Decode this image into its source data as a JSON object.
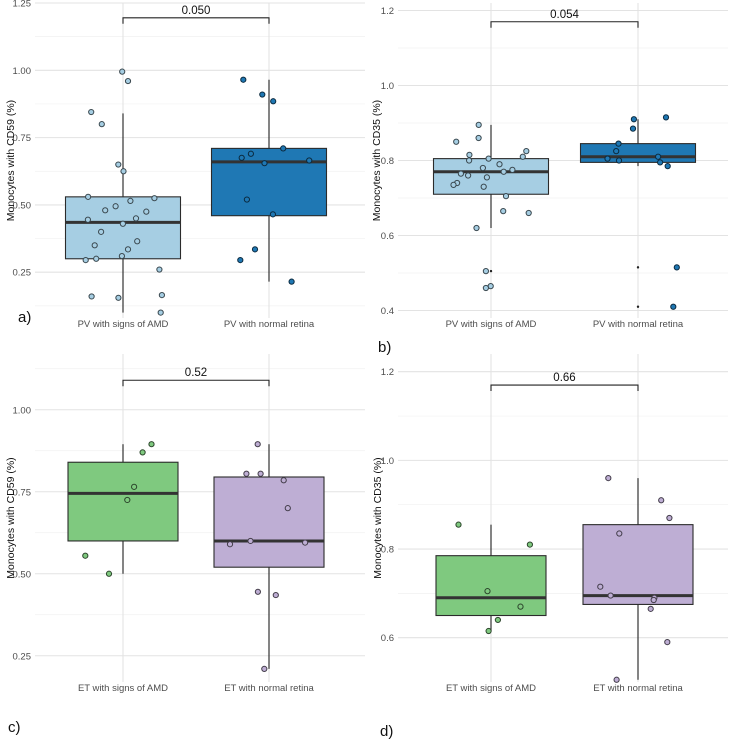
{
  "chart_data": [
    {
      "panel": "a)",
      "type": "boxplot",
      "ylabel": "Monocytes with CD59 (%)",
      "ylim": [
        0.08,
        1.25
      ],
      "yticks": [
        0.25,
        0.5,
        0.75,
        1.0,
        1.25
      ],
      "ytick_labels": [
        "0.25",
        "0.50",
        "0.75",
        "1.00",
        "1.25"
      ],
      "categories": [
        "PV with signs of AMD",
        "PV with normal retina"
      ],
      "comparison": {
        "label": "0.050",
        "y": 1.195
      },
      "groups": [
        {
          "name": "PV with signs of AMD",
          "color": "#a6cee3",
          "q1": 0.3,
          "median": 0.435,
          "q3": 0.53,
          "whisker_low": 0.1,
          "whisker_high": 0.84,
          "points": [
            0.995,
            0.96,
            0.845,
            0.8,
            0.65,
            0.625,
            0.53,
            0.525,
            0.515,
            0.495,
            0.48,
            0.475,
            0.45,
            0.445,
            0.43,
            0.4,
            0.365,
            0.35,
            0.335,
            0.31,
            0.3,
            0.295,
            0.26,
            0.165,
            0.16,
            0.155,
            0.1
          ],
          "outliers": [
            0.99
          ]
        },
        {
          "name": "PV with normal retina",
          "color": "#1f78b4",
          "q1": 0.46,
          "median": 0.66,
          "q3": 0.71,
          "whisker_low": 0.215,
          "whisker_high": 0.965,
          "points": [
            0.965,
            0.91,
            0.885,
            0.71,
            0.69,
            0.675,
            0.665,
            0.655,
            0.52,
            0.465,
            0.335,
            0.295,
            0.215
          ],
          "outliers": []
        }
      ]
    },
    {
      "panel": "b)",
      "type": "boxplot",
      "ylabel": "Monocytes with CD35 (%)",
      "ylim": [
        0.38,
        1.22
      ],
      "yticks": [
        0.4,
        0.6,
        0.8,
        1.0,
        1.2
      ],
      "ytick_labels": [
        "0.4",
        "0.6",
        "0.8",
        "1.0",
        "1.2"
      ],
      "categories": [
        "PV with signs of AMD",
        "PV with normal retina"
      ],
      "comparison": {
        "label": "0.054",
        "y": 1.17
      },
      "groups": [
        {
          "name": "PV with signs of AMD",
          "color": "#a6cee3",
          "q1": 0.71,
          "median": 0.77,
          "q3": 0.805,
          "whisker_low": 0.62,
          "whisker_high": 0.895,
          "points": [
            0.895,
            0.86,
            0.85,
            0.825,
            0.815,
            0.81,
            0.805,
            0.8,
            0.79,
            0.78,
            0.775,
            0.77,
            0.765,
            0.76,
            0.755,
            0.74,
            0.735,
            0.73,
            0.705,
            0.665,
            0.66,
            0.62,
            0.505,
            0.465,
            0.46
          ],
          "outliers": [
            0.505
          ]
        },
        {
          "name": "PV with normal retina",
          "color": "#1f78b4",
          "q1": 0.795,
          "median": 0.81,
          "q3": 0.845,
          "whisker_low": 0.785,
          "whisker_high": 0.91,
          "points": [
            0.915,
            0.91,
            0.885,
            0.845,
            0.825,
            0.81,
            0.805,
            0.8,
            0.795,
            0.785,
            0.515,
            0.41
          ],
          "outliers": [
            0.515,
            0.41
          ]
        }
      ]
    },
    {
      "panel": "c)",
      "type": "boxplot",
      "ylabel": "Monocytes with CD59 (%)",
      "ylim": [
        0.17,
        1.17
      ],
      "yticks": [
        0.25,
        0.5,
        0.75,
        1.0
      ],
      "ytick_labels": [
        "0.25",
        "0.50",
        "0.75",
        "1.00"
      ],
      "categories": [
        "ET with signs of AMD",
        "ET with normal retina"
      ],
      "comparison": {
        "label": "0.52",
        "y": 1.09
      },
      "groups": [
        {
          "name": "ET with signs of AMD",
          "color": "#7fc97f",
          "q1": 0.6,
          "median": 0.745,
          "q3": 0.84,
          "whisker_low": 0.5,
          "whisker_high": 0.895,
          "points": [
            0.895,
            0.87,
            0.765,
            0.725,
            0.555,
            0.5
          ],
          "outliers": []
        },
        {
          "name": "ET with normal retina",
          "color": "#beaed4",
          "q1": 0.52,
          "median": 0.6,
          "q3": 0.795,
          "whisker_low": 0.21,
          "whisker_high": 0.895,
          "points": [
            0.895,
            0.805,
            0.805,
            0.785,
            0.7,
            0.6,
            0.595,
            0.59,
            0.445,
            0.435,
            0.21
          ],
          "outliers": []
        }
      ]
    },
    {
      "panel": "d)",
      "type": "boxplot",
      "ylabel": "Monocytes with CD35 (%)",
      "ylim": [
        0.5,
        1.24
      ],
      "yticks": [
        0.6,
        0.8,
        1.0,
        1.2
      ],
      "ytick_labels": [
        "0.6",
        "0.8",
        "1.0",
        "1.2"
      ],
      "categories": [
        "ET with signs of AMD",
        "ET with normal retina"
      ],
      "comparison": {
        "label": "0.66",
        "y": 1.17
      },
      "groups": [
        {
          "name": "ET with signs of AMD",
          "color": "#7fc97f",
          "q1": 0.65,
          "median": 0.69,
          "q3": 0.785,
          "whisker_low": 0.615,
          "whisker_high": 0.855,
          "points": [
            0.855,
            0.81,
            0.705,
            0.67,
            0.64,
            0.615
          ],
          "outliers": []
        },
        {
          "name": "ET with normal retina",
          "color": "#beaed4",
          "q1": 0.675,
          "median": 0.695,
          "q3": 0.855,
          "whisker_low": 0.505,
          "whisker_high": 0.96,
          "points": [
            0.96,
            0.91,
            0.87,
            0.835,
            0.715,
            0.695,
            0.69,
            0.685,
            0.665,
            0.59,
            0.505
          ],
          "outliers": []
        }
      ]
    }
  ]
}
